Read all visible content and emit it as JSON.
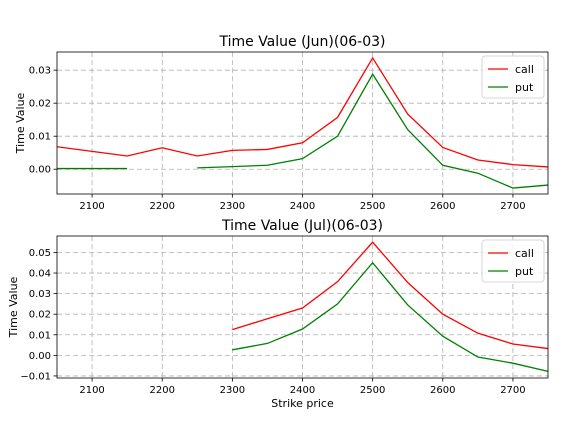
{
  "chart_data": [
    {
      "type": "line",
      "title": "Time Value (Jun)(06-03)",
      "xlabel": "",
      "ylabel": "Time Value",
      "xlim": [
        2050,
        2750
      ],
      "ylim": [
        -0.0075,
        0.0355
      ],
      "xticks": [
        2100,
        2200,
        2300,
        2400,
        2500,
        2600,
        2700
      ],
      "yticks": [
        0.0,
        0.01,
        0.02,
        0.03
      ],
      "ytick_labels": [
        "0.00",
        "0.01",
        "0.02",
        "0.03"
      ],
      "grid": true,
      "legend_position": "top-right",
      "series": [
        {
          "name": "call",
          "color": "#ff0000",
          "points": [
            [
              2050,
              0.0068
            ],
            [
              2100,
              0.0054
            ],
            [
              2150,
              0.004
            ],
            [
              2200,
              0.0065
            ],
            [
              2250,
              0.004
            ],
            [
              2300,
              0.0057
            ],
            [
              2350,
              0.006
            ],
            [
              2400,
              0.008
            ],
            [
              2450,
              0.0157
            ],
            [
              2500,
              0.0337
            ],
            [
              2550,
              0.0167
            ],
            [
              2600,
              0.0066
            ],
            [
              2650,
              0.0028
            ],
            [
              2700,
              0.0014
            ],
            [
              2750,
              0.0007
            ]
          ]
        },
        {
          "name": "put",
          "color": "#008000",
          "segments": [
            [
              [
                2050,
                0.0002
              ],
              [
                2100,
                0.0002
              ],
              [
                2150,
                0.0002
              ]
            ],
            [
              [
                2250,
                0.0004
              ],
              [
                2300,
                0.0008
              ],
              [
                2350,
                0.0012
              ],
              [
                2400,
                0.0032
              ],
              [
                2450,
                0.01
              ],
              [
                2500,
                0.0288
              ],
              [
                2550,
                0.012
              ],
              [
                2600,
                0.0012
              ],
              [
                2650,
                -0.0012
              ],
              [
                2700,
                -0.0057
              ],
              [
                2750,
                -0.0048
              ]
            ]
          ]
        }
      ]
    },
    {
      "type": "line",
      "title": "Time Value (Jul)(06-03)",
      "xlabel": "Strike price",
      "ylabel": "Time Value",
      "xlim": [
        2050,
        2750
      ],
      "ylim": [
        -0.011,
        0.058
      ],
      "xticks": [
        2100,
        2200,
        2300,
        2400,
        2500,
        2600,
        2700
      ],
      "yticks": [
        -0.01,
        0.0,
        0.01,
        0.02,
        0.03,
        0.04,
        0.05
      ],
      "ytick_labels": [
        "−0.01",
        "0.00",
        "0.01",
        "0.02",
        "0.03",
        "0.04",
        "0.05"
      ],
      "grid": true,
      "legend_position": "top-right",
      "series": [
        {
          "name": "call",
          "color": "#ff0000",
          "points": [
            [
              2300,
              0.0125
            ],
            [
              2350,
              0.0178
            ],
            [
              2400,
              0.023
            ],
            [
              2450,
              0.0358
            ],
            [
              2500,
              0.055
            ],
            [
              2550,
              0.0354
            ],
            [
              2600,
              0.02
            ],
            [
              2650,
              0.0108
            ],
            [
              2700,
              0.0055
            ],
            [
              2750,
              0.0033
            ]
          ]
        },
        {
          "name": "put",
          "color": "#008000",
          "points": [
            [
              2300,
              0.0027
            ],
            [
              2350,
              0.0058
            ],
            [
              2400,
              0.0128
            ],
            [
              2450,
              0.025
            ],
            [
              2500,
              0.045
            ],
            [
              2550,
              0.0245
            ],
            [
              2600,
              0.0093
            ],
            [
              2650,
              -0.0008
            ],
            [
              2700,
              -0.0038
            ],
            [
              2750,
              -0.0078
            ]
          ]
        }
      ]
    }
  ]
}
